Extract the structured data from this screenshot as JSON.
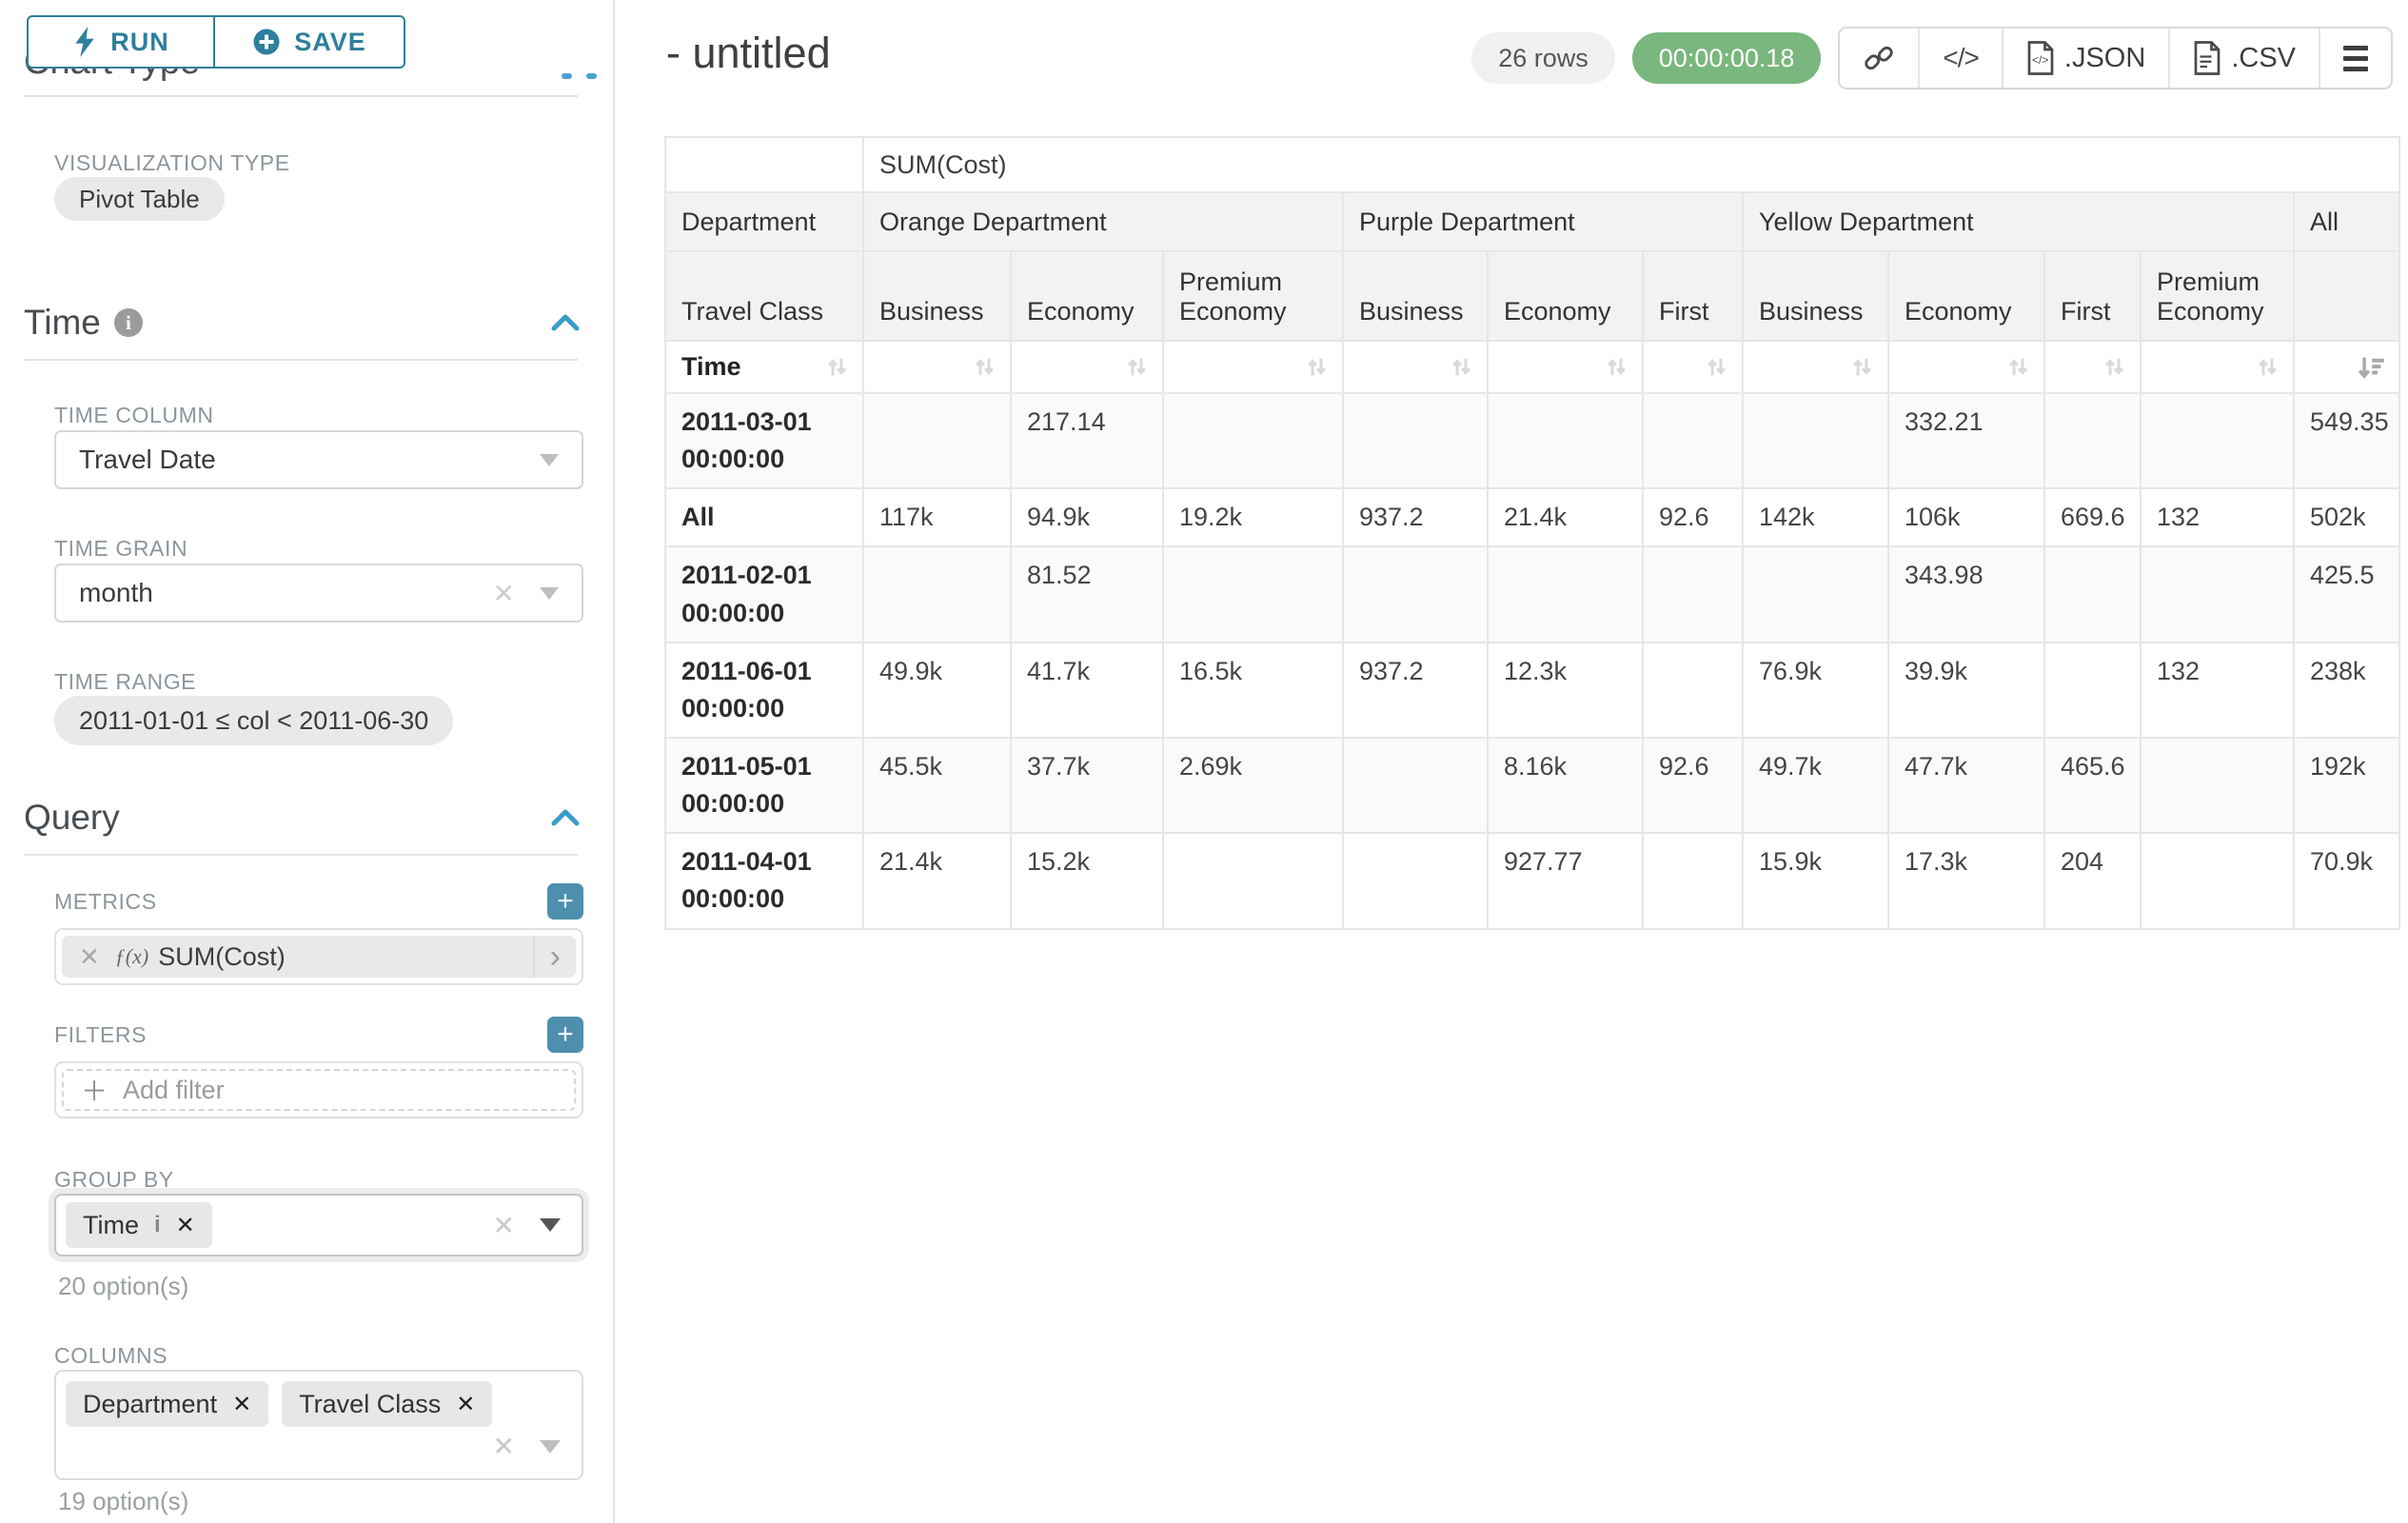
{
  "colors": {
    "accent_teal": "#2E7F9C",
    "plus_button_teal": "#4E8FAE",
    "timer_green": "#79B77E",
    "focus_blue": "#3A9CC9"
  },
  "sidebar": {
    "run_button": "RUN",
    "save_button": "SAVE",
    "chart_type_header": "Chart Type",
    "visualization_type_label": "VISUALIZATION TYPE",
    "visualization_type_value": "Pivot Table",
    "time": {
      "title": "Time",
      "time_column_label": "TIME COLUMN",
      "time_column_value": "Travel Date",
      "time_grain_label": "TIME GRAIN",
      "time_grain_value": "month",
      "time_range_label": "TIME RANGE",
      "time_range_value": "2011-01-01 ≤ col < 2011-06-30"
    },
    "query": {
      "title": "Query",
      "metrics_label": "METRICS",
      "metric_fx": "ƒ(x)",
      "metric_value": "SUM(Cost)",
      "filters_label": "FILTERS",
      "add_filter_placeholder": "Add filter",
      "group_by_label": "GROUP BY",
      "group_by_values": [
        "Time"
      ],
      "group_by_hint": "20 option(s)",
      "columns_label": "COLUMNS",
      "columns_values": [
        "Department",
        "Travel Class"
      ],
      "columns_hint": "19 option(s)"
    }
  },
  "header": {
    "title": "- untitled",
    "row_count_badge": "26 rows",
    "duration_badge": "00:00:00.18",
    "json_export_label": ".JSON",
    "csv_export_label": ".CSV"
  },
  "pivot_table": {
    "metric_header": "SUM(Cost)",
    "corner_row2": "Department",
    "corner_row3": "Travel Class",
    "corner_row4": "Time",
    "column_groups": [
      {
        "label": "Orange Department",
        "columns": [
          "Business",
          "Economy",
          "Premium Economy"
        ]
      },
      {
        "label": "Purple Department",
        "columns": [
          "Business",
          "Economy",
          "First"
        ]
      },
      {
        "label": "Yellow Department",
        "columns": [
          "Business",
          "Economy",
          "First",
          "Premium Economy"
        ]
      }
    ],
    "all_column_label": "All",
    "rows": [
      {
        "label": "2011-03-01 00:00:00",
        "values": [
          "",
          "217.14",
          "",
          "",
          "",
          "",
          "",
          "332.21",
          "",
          ""
        ],
        "all": "549.35"
      },
      {
        "label": "All",
        "values": [
          "117k",
          "94.9k",
          "19.2k",
          "937.2",
          "21.4k",
          "92.6",
          "142k",
          "106k",
          "669.6",
          "132"
        ],
        "all": "502k"
      },
      {
        "label": "2011-02-01 00:00:00",
        "values": [
          "",
          "81.52",
          "",
          "",
          "",
          "",
          "",
          "343.98",
          "",
          ""
        ],
        "all": "425.5"
      },
      {
        "label": "2011-06-01 00:00:00",
        "values": [
          "49.9k",
          "41.7k",
          "16.5k",
          "937.2",
          "12.3k",
          "",
          "76.9k",
          "39.9k",
          "",
          "132"
        ],
        "all": "238k"
      },
      {
        "label": "2011-05-01 00:00:00",
        "values": [
          "45.5k",
          "37.7k",
          "2.69k",
          "",
          "8.16k",
          "92.6",
          "49.7k",
          "47.7k",
          "465.6",
          ""
        ],
        "all": "192k"
      },
      {
        "label": "2011-04-01 00:00:00",
        "values": [
          "21.4k",
          "15.2k",
          "",
          "",
          "927.77",
          "",
          "15.9k",
          "17.3k",
          "204",
          ""
        ],
        "all": "70.9k"
      }
    ]
  }
}
